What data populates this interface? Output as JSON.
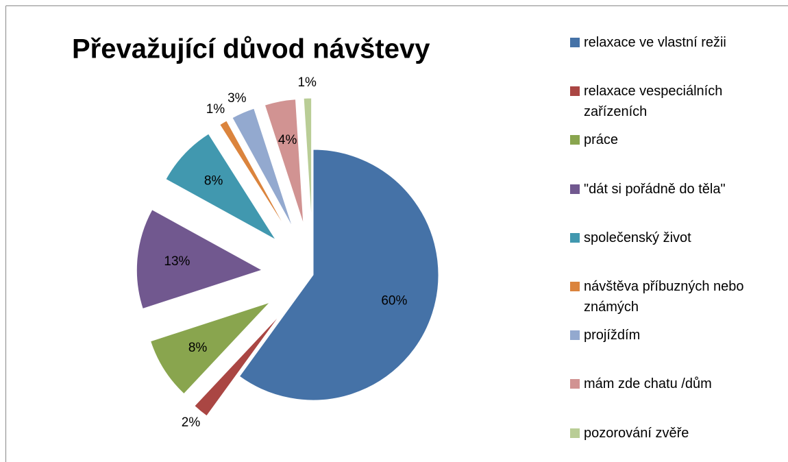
{
  "chart_data": {
    "type": "pie",
    "title": "Převažující důvod návštevy",
    "categories": [
      "relaxace ve vlastní režii",
      "relaxace vespeciálních zařízeních",
      "práce",
      "\"dát si pořádně do těla\"",
      "společenský život",
      "návštěva příbuzných nebo známých",
      "projíždím",
      "mám zde chatu /dům",
      "pozorování zvěře"
    ],
    "values": [
      60,
      2,
      8,
      13,
      8,
      1,
      3,
      4,
      1
    ],
    "value_labels": [
      "60%",
      "2%",
      "8%",
      "13%",
      "8%",
      "1%",
      "3%",
      "4%",
      "1%"
    ],
    "colors": [
      "#4572a7",
      "#aa4643",
      "#89a54e",
      "#71588f",
      "#4198af",
      "#db843d",
      "#93a9cf",
      "#d19392",
      "#b9cd96"
    ],
    "legend": "right"
  }
}
